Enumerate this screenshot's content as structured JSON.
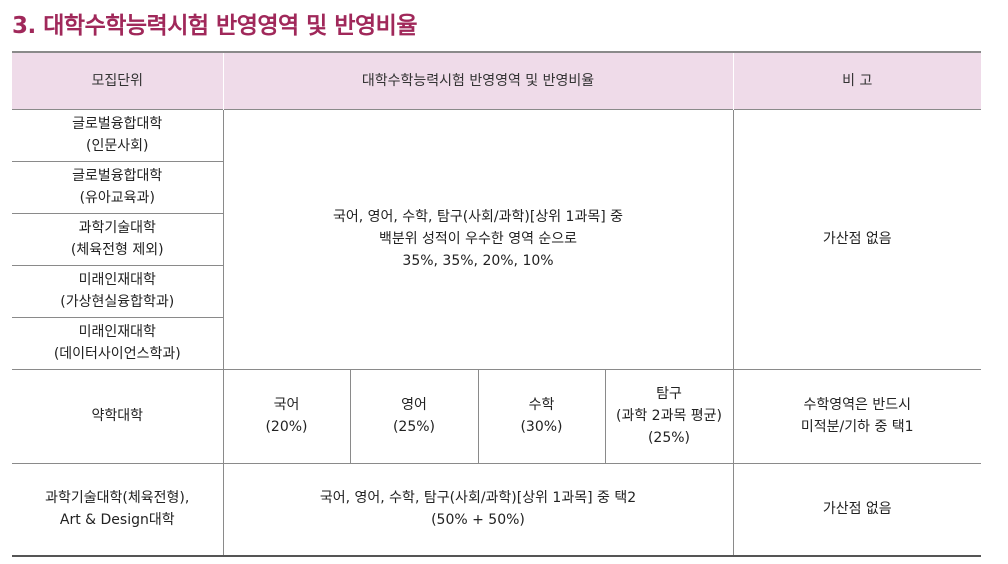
{
  "title": "3. 대학수학능력시험 반영영역 및 반영비율",
  "header": {
    "col_unit": "모집단위",
    "col_area": "대학수학능력시험 반영영역 및 반영비율",
    "col_note": "비 고"
  },
  "group1": {
    "units": [
      {
        "line1": "글로벌융합대학",
        "line2": "(인문사회)"
      },
      {
        "line1": "글로벌융합대학",
        "line2": "(유아교육과)"
      },
      {
        "line1": "과학기술대학",
        "line2": "(체육전형 제외)"
      },
      {
        "line1": "미래인재대학",
        "line2": "(가상현실융합학과)"
      },
      {
        "line1": "미래인재대학",
        "line2": "(데이터사이언스학과)"
      }
    ],
    "area_line1": "국어, 영어, 수학, 탐구(사회/과학)[상위 1과목] 중",
    "area_line2": "백분위 성적이 우수한 영역 순으로",
    "area_line3": "35%, 35%, 20%, 10%",
    "note": "가산점 없음"
  },
  "pharmacy": {
    "unit": "약학대학",
    "subjects": [
      {
        "name": "국어",
        "detail": "",
        "ratio": "(20%)"
      },
      {
        "name": "영어",
        "detail": "",
        "ratio": "(25%)"
      },
      {
        "name": "수학",
        "detail": "",
        "ratio": "(30%)"
      },
      {
        "name": "탐구",
        "detail": "(과학 2과목 평균)",
        "ratio": "(25%)"
      }
    ],
    "note_line1": "수학영역은 반드시",
    "note_line2": "미적분/기하 중 택1"
  },
  "group3": {
    "unit_line1": "과학기술대학(체육전형),",
    "unit_line2": "Art & Design대학",
    "area_line1": "국어, 영어, 수학, 탐구(사회/과학)[상위 1과목] 중 택2",
    "area_line2": "(50% + 50%)",
    "note": "가산점 없음"
  }
}
